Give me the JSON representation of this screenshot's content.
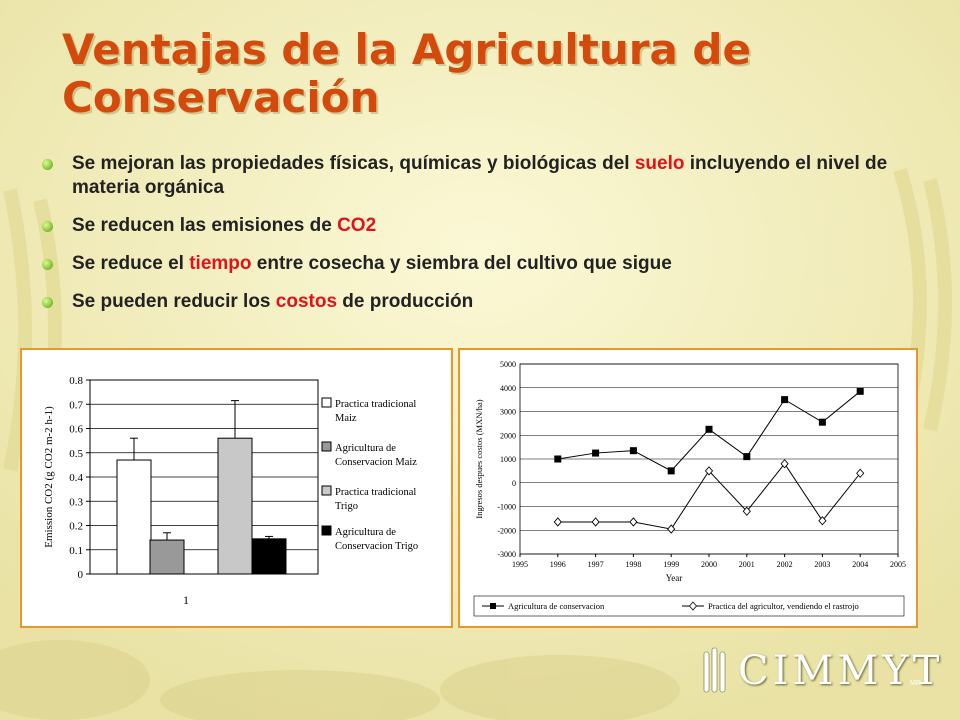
{
  "slide": {
    "title": "Ventajas de la Agricultura de Conservación",
    "bullets": [
      {
        "parts": [
          "Se mejoran las propiedades físicas, químicas y biológicas del ",
          "suelo",
          " incluyendo el nivel de materia orgánica"
        ]
      },
      {
        "parts": [
          "Se reducen las emisiones de ",
          "CO2",
          ""
        ]
      },
      {
        "parts": [
          "Se reduce el ",
          "tiempo",
          " entre cosecha y siembra del cultivo que sigue"
        ]
      },
      {
        "parts": [
          "Se pueden reducir los ",
          "costos",
          " de producción"
        ]
      }
    ],
    "highlight_color": "#e3121a",
    "title_color": "#d44a0c"
  },
  "logo": {
    "text": "CIMMYT",
    "mark": "MR",
    "icon": "wheat-icon"
  },
  "chart_data": [
    {
      "type": "bar",
      "title": "",
      "xlabel": "",
      "ylabel": "Emission CO2 (g CO2 m-2 h-1)",
      "categories": [
        "1"
      ],
      "ylim": [
        0,
        0.8
      ],
      "yticks": [
        "0",
        "0.1",
        "0.2",
        "0.3",
        "0.4",
        "0.5",
        "0.6",
        "0.7",
        "0.8"
      ],
      "grid": true,
      "legend_position": "right",
      "series": [
        {
          "name": "Practica tradicional Maiz",
          "values": [
            0.47
          ],
          "error": [
            0.09
          ],
          "color": "#ffffff"
        },
        {
          "name": "Agricultura de Conservacion Maiz",
          "values": [
            0.14
          ],
          "error": [
            0.03
          ],
          "color": "#999999"
        },
        {
          "name": "Practica tradicional Trigo",
          "values": [
            0.56
          ],
          "error": [
            0.155
          ],
          "color": "#c8c8c8"
        },
        {
          "name": "Agricultura de Conservacion Trigo",
          "values": [
            0.145
          ],
          "error": [
            0.01
          ],
          "color": "#000000"
        }
      ]
    },
    {
      "type": "line",
      "title": "",
      "xlabel": "Year",
      "ylabel": "Ingresos despues costos (MXN/ha)",
      "xlim": [
        1995,
        2005
      ],
      "ylim": [
        -3000,
        5000
      ],
      "xticks": [
        "1995",
        "1996",
        "1997",
        "1998",
        "1999",
        "2000",
        "2001",
        "2002",
        "2003",
        "2004",
        "2005"
      ],
      "yticks": [
        "-3000",
        "-2000",
        "-1000",
        "0",
        "1000",
        "2000",
        "3000",
        "4000",
        "5000"
      ],
      "grid": true,
      "legend_position": "bottom",
      "x": [
        1996,
        1997,
        1998,
        1999,
        2000,
        2001,
        2002,
        2003,
        2004
      ],
      "series": [
        {
          "name": "Agricultura de conservacion",
          "marker": "square",
          "values": [
            1000,
            1250,
            1350,
            500,
            2250,
            1100,
            3500,
            2550,
            3850
          ]
        },
        {
          "name": "Practica del agricultor, vendiendo el rastrojo",
          "marker": "diamond",
          "values": [
            -1650,
            -1650,
            -1650,
            -1950,
            500,
            -1200,
            800,
            -1600,
            400
          ]
        }
      ]
    }
  ]
}
